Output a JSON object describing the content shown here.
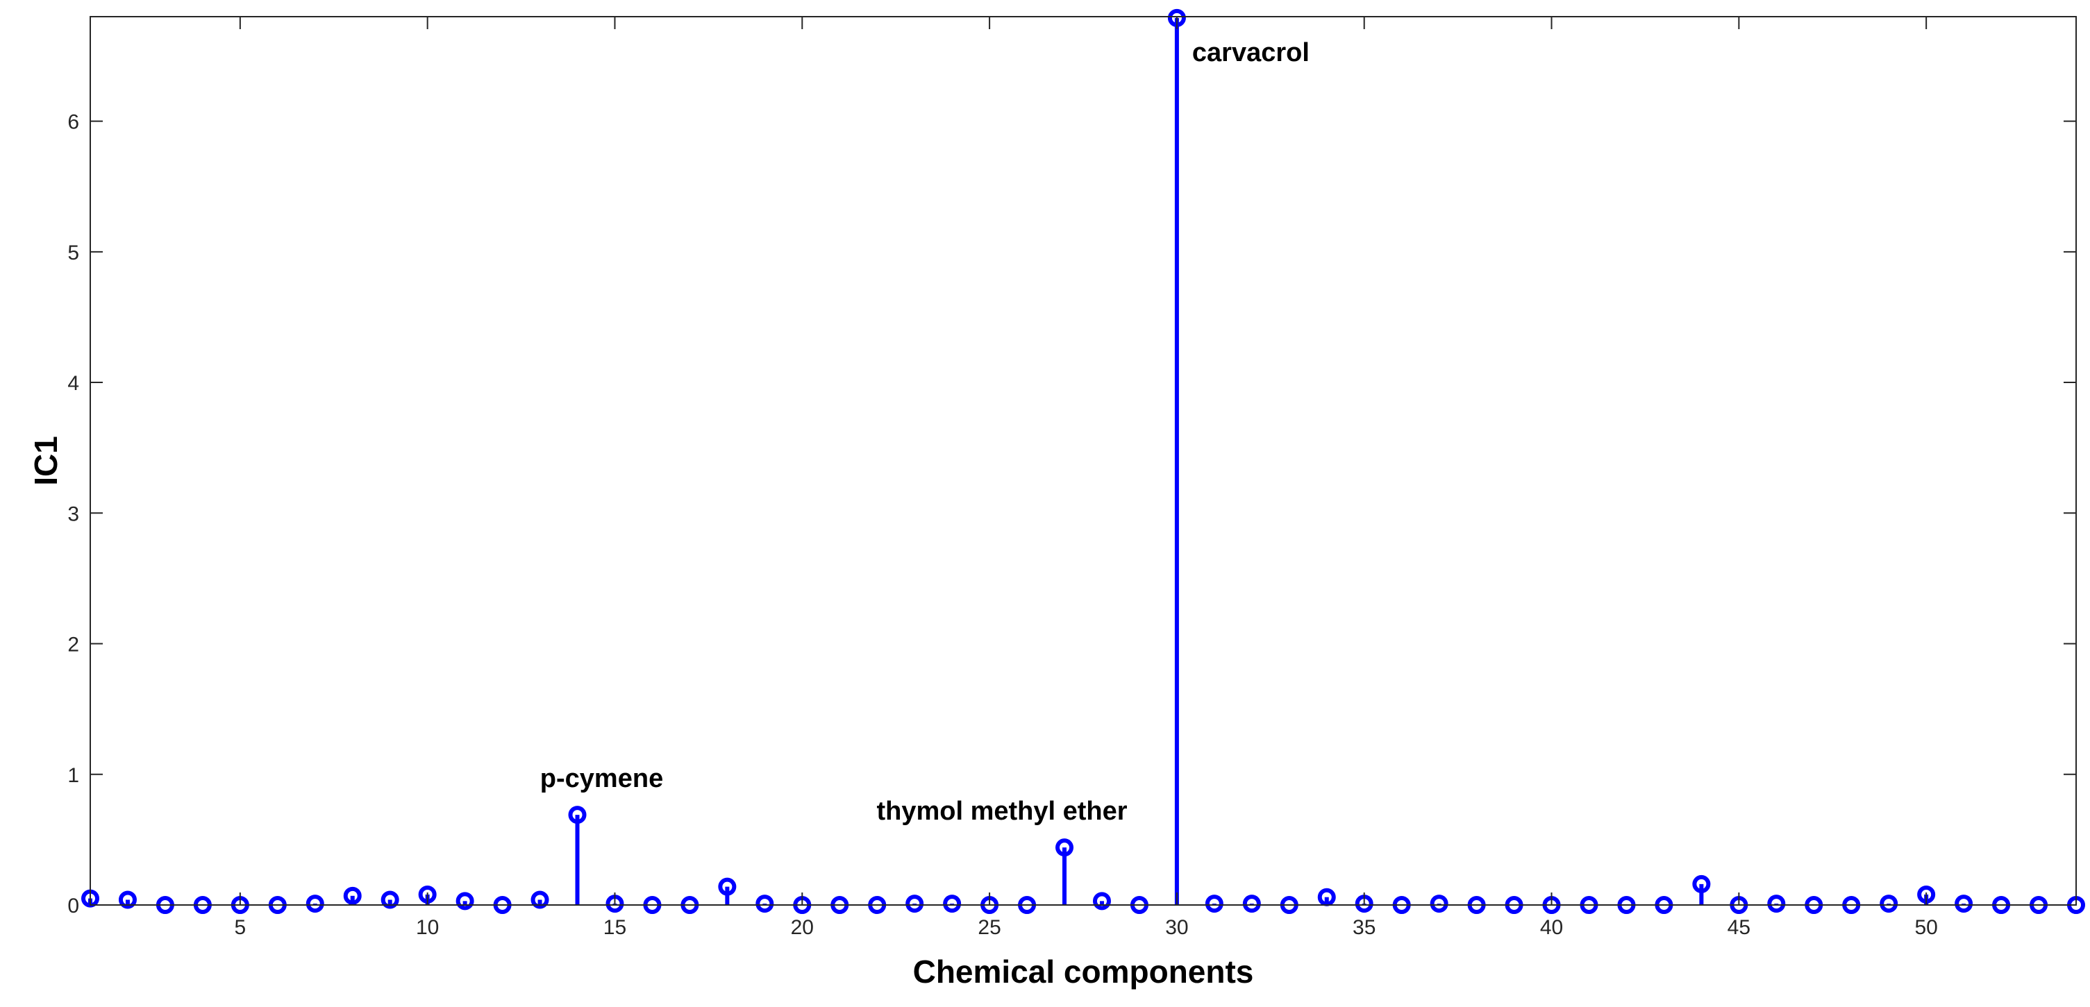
{
  "chart_data": {
    "type": "stem",
    "title": "",
    "xlabel": "Chemical components",
    "ylabel": "IC1",
    "xlim": [
      1,
      54
    ],
    "ylim": [
      0,
      6.8
    ],
    "xticks": [
      5,
      10,
      15,
      20,
      25,
      30,
      35,
      40,
      45,
      50
    ],
    "yticks": [
      0,
      1,
      2,
      3,
      4,
      5,
      6
    ],
    "grid": false,
    "marker": "circle",
    "color": "#0000ff",
    "x": [
      1,
      2,
      3,
      4,
      5,
      6,
      7,
      8,
      9,
      10,
      11,
      12,
      13,
      14,
      15,
      16,
      17,
      18,
      19,
      20,
      21,
      22,
      23,
      24,
      25,
      26,
      27,
      28,
      29,
      30,
      31,
      32,
      33,
      34,
      35,
      36,
      37,
      38,
      39,
      40,
      41,
      42,
      43,
      44,
      45,
      46,
      47,
      48,
      49,
      50,
      51,
      52,
      53,
      54
    ],
    "values": [
      0.05,
      0.04,
      0.0,
      0.0,
      0.0,
      0.0,
      0.01,
      0.07,
      0.04,
      0.08,
      0.03,
      0.0,
      0.04,
      0.69,
      0.01,
      0.0,
      0.0,
      0.14,
      0.01,
      0.0,
      0.0,
      0.0,
      0.01,
      0.01,
      0.0,
      0.0,
      0.44,
      0.03,
      0.0,
      6.79,
      0.01,
      0.01,
      0.0,
      0.06,
      0.01,
      0.0,
      0.01,
      0.0,
      0.0,
      0.0,
      0.0,
      0.0,
      0.0,
      0.16,
      0.0,
      0.01,
      0.0,
      0.0,
      0.01,
      0.08,
      0.01,
      0.0,
      0.0,
      0.0
    ],
    "annotations": [
      {
        "x": 14,
        "y": 0.69,
        "text": "p-cymene"
      },
      {
        "x": 27,
        "y": 0.44,
        "text": "thymol methyl ether"
      },
      {
        "x": 30,
        "y": 6.79,
        "text": "carvacrol"
      }
    ]
  }
}
